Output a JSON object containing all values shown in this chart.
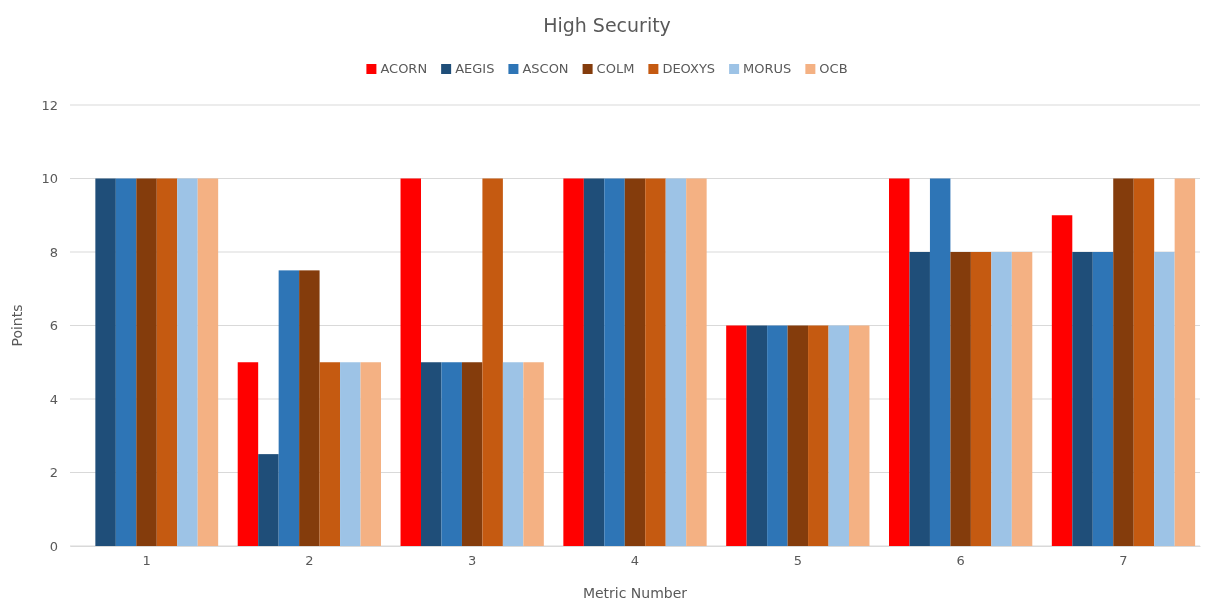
{
  "chart_data": {
    "type": "bar",
    "title": "High Security",
    "xlabel": "Metric Number",
    "ylabel": "Points",
    "categories": [
      "1",
      "2",
      "3",
      "4",
      "5",
      "6",
      "7"
    ],
    "series": [
      {
        "name": "ACORN",
        "color": "#ff0000",
        "values": [
          0,
          5,
          10,
          10,
          6,
          10,
          9
        ]
      },
      {
        "name": "AEGIS",
        "color": "#1f4e79",
        "values": [
          10,
          2.5,
          5,
          10,
          6,
          8,
          8
        ]
      },
      {
        "name": "ASCON",
        "color": "#2e75b6",
        "values": [
          10,
          7.5,
          5,
          10,
          6,
          10,
          8
        ]
      },
      {
        "name": "COLM",
        "color": "#843c0c",
        "values": [
          10,
          7.5,
          5,
          10,
          6,
          8,
          10
        ]
      },
      {
        "name": "DEOXYS",
        "color": "#c55a11",
        "values": [
          10,
          5,
          10,
          10,
          6,
          8,
          10
        ]
      },
      {
        "name": "MORUS",
        "color": "#9dc3e6",
        "values": [
          10,
          5,
          5,
          10,
          6,
          8,
          8
        ]
      },
      {
        "name": "OCB",
        "color": "#f4b183",
        "values": [
          10,
          5,
          5,
          10,
          6,
          8,
          10
        ]
      }
    ],
    "ylim": [
      0,
      12
    ],
    "yticks": [
      0,
      2,
      4,
      6,
      8,
      10,
      12
    ],
    "grid": "y",
    "legend": "top"
  }
}
